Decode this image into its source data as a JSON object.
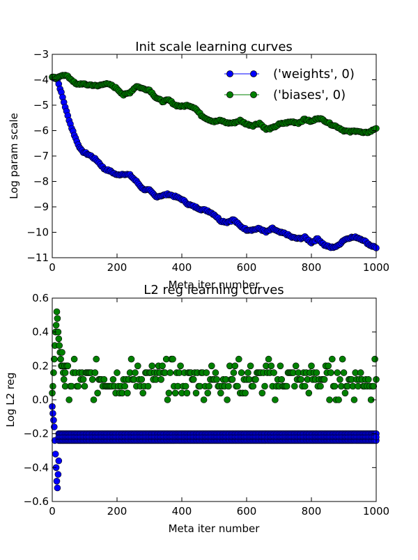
{
  "chart_data": [
    {
      "type": "line",
      "title": "Init scale learning curves",
      "xlabel": "Meta iter number",
      "ylabel": "Log param scale",
      "xlim": [
        0,
        1000
      ],
      "ylim": [
        -11,
        -3
      ],
      "xticks": [
        "0",
        "200",
        "400",
        "600",
        "800",
        "1000"
      ],
      "yticks": [
        "−11",
        "−10",
        "−9",
        "−8",
        "−7",
        "−6",
        "−5",
        "−4",
        "−3"
      ],
      "legend": {
        "placement": "top-right"
      },
      "series": [
        {
          "name": "('weights', 0)",
          "color": "#0000ff",
          "x": [
            0,
            15,
            30,
            45,
            60,
            75,
            90,
            105,
            120,
            140,
            160,
            180,
            200,
            220,
            240,
            260,
            280,
            300,
            320,
            340,
            360,
            380,
            400,
            420,
            440,
            460,
            480,
            500,
            520,
            540,
            560,
            580,
            600,
            620,
            640,
            660,
            680,
            700,
            720,
            740,
            760,
            780,
            800,
            820,
            840,
            860,
            880,
            900,
            920,
            940,
            960,
            980,
            1000
          ],
          "y": [
            -3.9,
            -3.95,
            -4.6,
            -5.3,
            -5.9,
            -6.4,
            -6.8,
            -6.9,
            -7.0,
            -7.2,
            -7.5,
            -7.6,
            -7.75,
            -7.7,
            -7.75,
            -8.0,
            -8.3,
            -8.35,
            -8.6,
            -8.55,
            -8.5,
            -8.6,
            -8.7,
            -8.9,
            -9.0,
            -9.1,
            -9.15,
            -9.3,
            -9.55,
            -9.6,
            -9.5,
            -9.75,
            -9.9,
            -9.9,
            -9.85,
            -10.0,
            -9.85,
            -10.0,
            -10.05,
            -10.2,
            -10.25,
            -10.2,
            -10.4,
            -10.25,
            -10.5,
            -10.6,
            -10.55,
            -10.3,
            -10.2,
            -10.2,
            -10.3,
            -10.5,
            -10.6
          ]
        },
        {
          "name": "('biases', 0)",
          "color": "#008000",
          "x": [
            0,
            15,
            30,
            45,
            60,
            75,
            90,
            105,
            120,
            140,
            160,
            180,
            200,
            220,
            240,
            260,
            280,
            300,
            320,
            340,
            360,
            380,
            400,
            420,
            440,
            460,
            480,
            500,
            520,
            540,
            560,
            580,
            600,
            620,
            640,
            660,
            680,
            700,
            720,
            740,
            760,
            780,
            800,
            820,
            840,
            860,
            880,
            900,
            920,
            940,
            960,
            980,
            1000
          ],
          "y": [
            -3.9,
            -3.95,
            -3.8,
            -3.85,
            -4.0,
            -4.2,
            -4.15,
            -4.2,
            -4.2,
            -4.25,
            -4.15,
            -4.2,
            -4.35,
            -4.6,
            -4.5,
            -4.25,
            -4.35,
            -4.4,
            -4.7,
            -4.85,
            -4.8,
            -5.0,
            -5.05,
            -5.0,
            -5.1,
            -5.4,
            -5.55,
            -5.65,
            -5.6,
            -5.7,
            -5.7,
            -5.6,
            -5.75,
            -5.8,
            -5.7,
            -5.95,
            -5.9,
            -5.75,
            -5.7,
            -5.65,
            -5.7,
            -5.55,
            -5.65,
            -5.5,
            -5.6,
            -5.75,
            -5.85,
            -6.0,
            -6.05,
            -6.0,
            -6.1,
            -6.05,
            -5.9
          ]
        }
      ]
    },
    {
      "type": "scatter",
      "title": "L2 reg learning curves",
      "xlabel": "Meta iter number",
      "ylabel": "Log L2 reg",
      "xlim": [
        0,
        1000
      ],
      "ylim": [
        -0.6,
        0.6
      ],
      "xticks": [
        "0",
        "200",
        "400",
        "600",
        "800",
        "1000"
      ],
      "yticks": [
        "−0.6",
        "−0.4",
        "−0.2",
        "0.0",
        "0.2",
        "0.4",
        "0.6"
      ],
      "series": [
        {
          "color": "#0000ff",
          "spike_x": [
            0,
            2,
            4,
            6,
            8,
            10,
            12,
            14,
            16,
            18,
            20
          ],
          "spike_y": [
            -0.04,
            -0.08,
            -0.12,
            -0.16,
            -0.24,
            -0.32,
            -0.4,
            -0.48,
            -0.52,
            -0.44,
            -0.36
          ],
          "band_x": [
            20,
            1000
          ],
          "band_y": [
            -0.24,
            -0.2
          ]
        },
        {
          "color": "#008000",
          "spike_x": [
            0,
            2,
            4,
            6,
            8,
            10,
            12,
            14,
            16,
            18,
            20,
            22,
            24,
            26,
            28,
            30,
            32,
            34,
            36,
            38,
            40
          ],
          "spike_y": [
            0.04,
            0.08,
            0.16,
            0.24,
            0.32,
            0.4,
            0.44,
            0.52,
            0.48,
            0.4,
            0.36,
            0.32,
            0.28,
            0.24,
            0.2,
            0.28,
            0.2,
            0.16,
            0.12,
            0.2,
            0.16
          ],
          "range_x": [
            40,
            1000
          ],
          "levels": [
            0.0,
            0.04,
            0.08,
            0.12,
            0.16,
            0.2,
            0.24
          ]
        }
      ]
    }
  ]
}
